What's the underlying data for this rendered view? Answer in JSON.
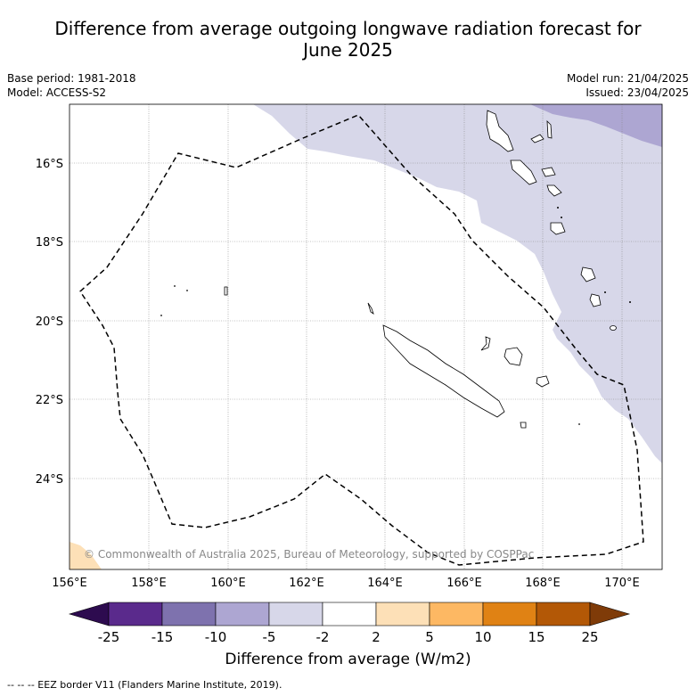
{
  "title_line1": "Difference from average outgoing longwave radiation forecast for",
  "title_line2": "June 2025",
  "base_period": "Base period: 1981-2018",
  "model": "Model: ACCESS-S2",
  "model_run": "Model run: 21/04/2025",
  "issued": "Issued: 23/04/2025",
  "copyright": "© Commonwealth of Australia 2025, Bureau of Meteorology, supported by COSPPac",
  "map": {
    "lon_range": [
      156,
      171
    ],
    "lat_range": [
      -26.2,
      -14.6
    ],
    "lon_ticks": [
      "156°E",
      "158°E",
      "160°E",
      "162°E",
      "164°E",
      "166°E",
      "168°E",
      "170°E"
    ],
    "lat_ticks": [
      "16°S",
      "18°S",
      "20°S",
      "22°S",
      "24°S"
    ],
    "grid": true
  },
  "colorbar": {
    "tick_labels": [
      "-25",
      "-15",
      "-10",
      "-5",
      "-2",
      "2",
      "5",
      "10",
      "15",
      "25"
    ],
    "colors": [
      "#2d0b4f",
      "#5a2a8c",
      "#7e72ae",
      "#ada6d2",
      "#d7d7e9",
      "#ffffff",
      "#fde0b7",
      "#fdb863",
      "#e08214",
      "#b35806",
      "#7f3b08"
    ],
    "label": "Difference from average (W/m2)"
  },
  "footer_legend": "--  --  -- EEZ border V11 (Flanders Marine Institute, 2019)."
}
